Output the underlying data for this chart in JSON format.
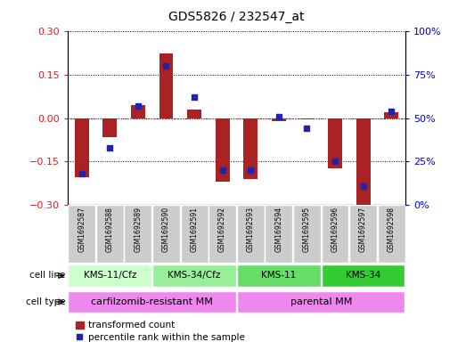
{
  "title": "GDS5826 / 232547_at",
  "samples": [
    "GSM1692587",
    "GSM1692588",
    "GSM1692589",
    "GSM1692590",
    "GSM1692591",
    "GSM1692592",
    "GSM1692593",
    "GSM1692594",
    "GSM1692595",
    "GSM1692596",
    "GSM1692597",
    "GSM1692598"
  ],
  "transformed_count": [
    -0.205,
    -0.065,
    0.045,
    0.225,
    0.03,
    -0.22,
    -0.21,
    -0.01,
    -0.005,
    -0.175,
    -0.305,
    0.02
  ],
  "percentile_rank": [
    18,
    33,
    57,
    80,
    62,
    20,
    20,
    51,
    44,
    25,
    11,
    54
  ],
  "ylim_left": [
    -0.3,
    0.3
  ],
  "ylim_right": [
    0,
    100
  ],
  "yticks_left": [
    -0.3,
    -0.15,
    0,
    0.15,
    0.3
  ],
  "yticks_right": [
    0,
    25,
    50,
    75,
    100
  ],
  "bar_color": "#aa2222",
  "dot_color": "#2222aa",
  "cell_lines": [
    {
      "label": "KMS-11/Cfz",
      "start": 0,
      "end": 3,
      "color": "#ccffcc"
    },
    {
      "label": "KMS-34/Cfz",
      "start": 3,
      "end": 6,
      "color": "#99ee99"
    },
    {
      "label": "KMS-11",
      "start": 6,
      "end": 9,
      "color": "#66dd66"
    },
    {
      "label": "KMS-34",
      "start": 9,
      "end": 12,
      "color": "#33cc33"
    }
  ],
  "cell_types": [
    {
      "label": "carfilzomib-resistant MM",
      "start": 0,
      "end": 6,
      "color": "#ee88ee"
    },
    {
      "label": "parental MM",
      "start": 6,
      "end": 12,
      "color": "#ee88ee"
    }
  ],
  "legend_bar_label": "transformed count",
  "legend_dot_label": "percentile rank within the sample",
  "sample_box_color": "#cccccc",
  "left_tick_color": "#cc2222",
  "right_tick_color": "#0000cc",
  "zero_line_color": "#cc2222",
  "grid_linestyle": ":",
  "bar_width": 0.5
}
